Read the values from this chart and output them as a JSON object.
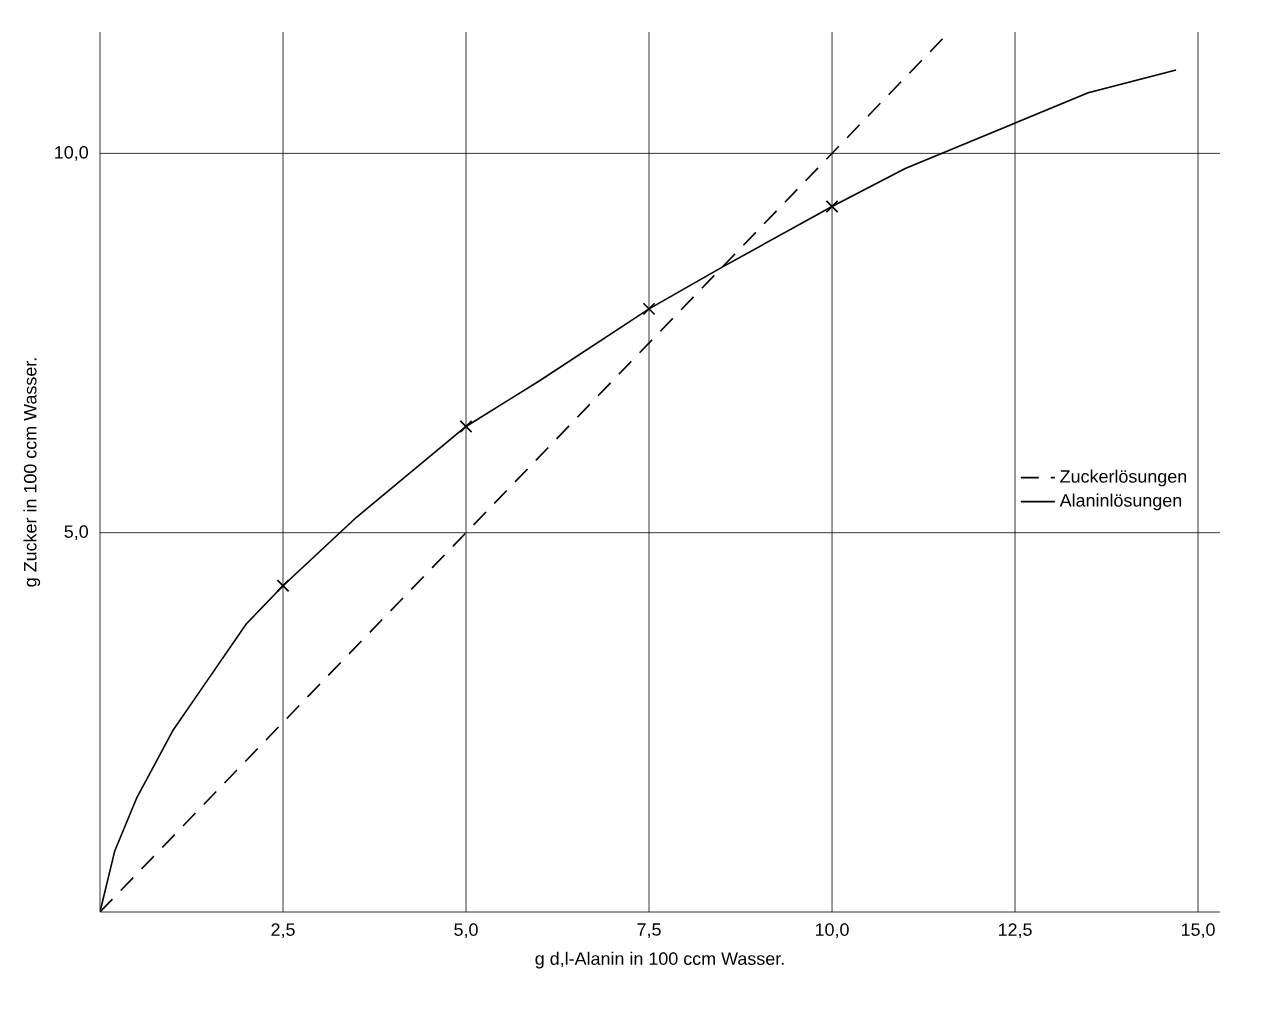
{
  "chart_data": {
    "type": "line",
    "xlabel": "g d,l-Alanin in 100 ccm Wasser.",
    "ylabel": "g Zucker in 100 ccm Wasser.",
    "xlim": [
      0,
      15.3
    ],
    "ylim": [
      0,
      11.6
    ],
    "xticks": [
      {
        "value": 2.5,
        "label": "2,5"
      },
      {
        "value": 5,
        "label": "5,0"
      },
      {
        "value": 7.5,
        "label": "7,5"
      },
      {
        "value": 10,
        "label": "10,0"
      },
      {
        "value": 12.5,
        "label": "12,5"
      },
      {
        "value": 15,
        "label": "15,0"
      }
    ],
    "yticks": [
      {
        "value": 5,
        "label": "5,0"
      },
      {
        "value": 10,
        "label": "10,0"
      }
    ],
    "grid": true,
    "legend": "right",
    "series": [
      {
        "name": "Zuckerlösungen",
        "color": "#000000",
        "line_style": "dashed",
        "marker": "none",
        "x": [
          0,
          11.6
        ],
        "values": [
          0,
          11.6
        ]
      },
      {
        "name": "Alaninlösungen",
        "color": "#000000",
        "line_style": "solid",
        "marker": "none",
        "x": [
          0,
          0.2,
          0.5,
          1,
          1.5,
          2,
          2.5,
          3.5,
          5,
          6,
          7.5,
          8.5,
          10,
          11,
          12.5,
          13.5,
          14.7
        ],
        "values": [
          0,
          0.8,
          1.5,
          2.4,
          3.1,
          3.8,
          4.3,
          5.2,
          6.4,
          7.0,
          7.95,
          8.5,
          9.3,
          9.8,
          10.4,
          10.8,
          11.1
        ]
      },
      {
        "type": "scatter",
        "color": "#000000",
        "marker": "cross",
        "x": [
          2.5,
          5,
          7.5,
          10
        ],
        "values": [
          4.3,
          6.4,
          7.95,
          9.3
        ]
      }
    ]
  }
}
